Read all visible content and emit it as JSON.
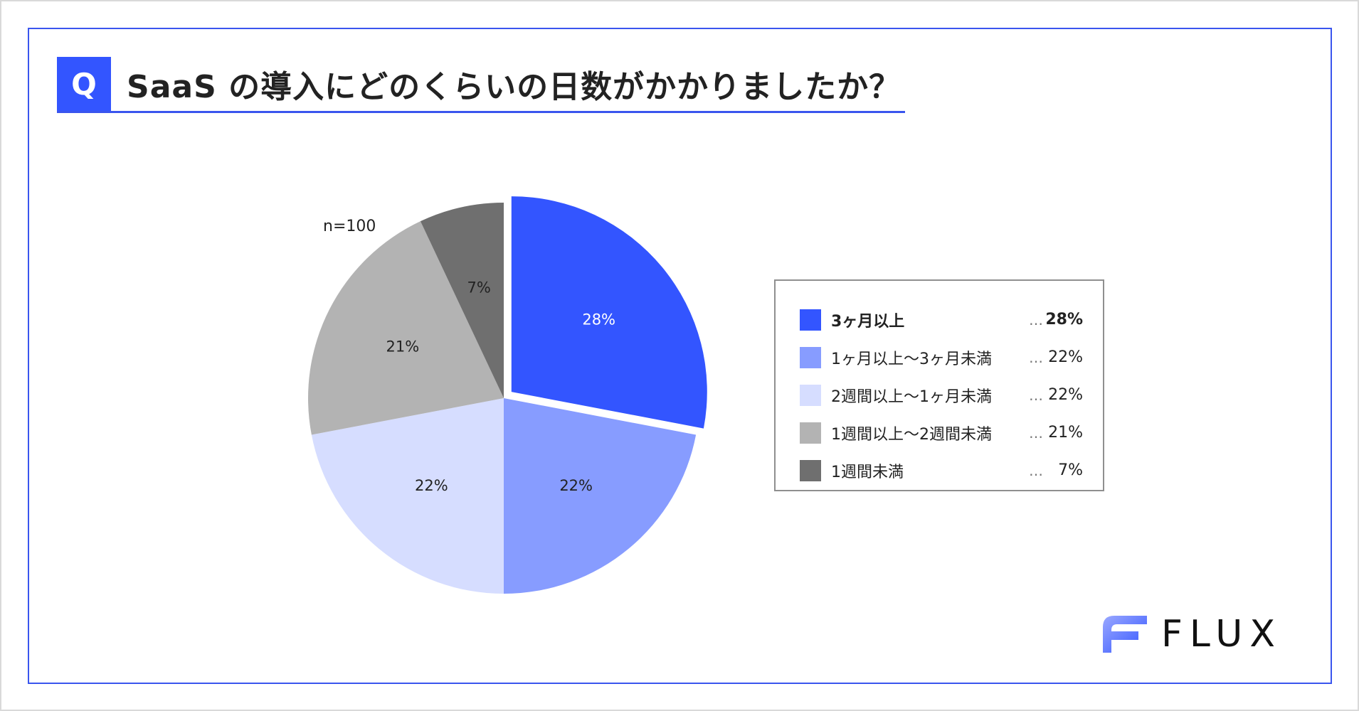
{
  "question": {
    "badge": "Q",
    "title": "SaaS の導入にどのくらいの日数がかかりましたか？"
  },
  "sample_size": "n=100",
  "brand": {
    "name": "FLUX",
    "logo_icon": "flux-logo-icon"
  },
  "colors": {
    "accent": "#3355ff",
    "frame": "#3a55ee"
  },
  "chart_data": {
    "type": "pie",
    "title": "SaaS の導入にどのくらいの日数がかかりましたか？",
    "slices": [
      {
        "label": "3ヶ月以上",
        "value": 28,
        "display": "28%",
        "color": "#3355ff",
        "label_color": "#ffffff",
        "exploded": true
      },
      {
        "label": "1ヶ月以上〜3ヶ月未満",
        "value": 22,
        "display": "22%",
        "color": "#879cff",
        "label_color": "#222222",
        "exploded": false
      },
      {
        "label": "2週間以上〜1ヶ月未満",
        "value": 22,
        "display": "22%",
        "color": "#d6ddff",
        "label_color": "#222222",
        "exploded": false
      },
      {
        "label": "1週間以上〜2週間未満",
        "value": 21,
        "display": "21%",
        "color": "#b3b3b3",
        "label_color": "#222222",
        "exploded": false
      },
      {
        "label": "1週間未満",
        "value": 7,
        "display": "7%",
        "color": "#6f6f6f",
        "label_color": "#222222",
        "exploded": false
      }
    ],
    "start": "12 o'clock",
    "direction": "clockwise",
    "legend": {
      "placement": "right",
      "separator": "…",
      "entries": [
        {
          "label": "3ヶ月以上",
          "pct": "28%"
        },
        {
          "label": "1ヶ月以上〜3ヶ月未満",
          "pct": "22%"
        },
        {
          "label": "2週間以上〜1ヶ月未満",
          "pct": "22%"
        },
        {
          "label": "1週間以上〜2週間未満",
          "pct": "21%"
        },
        {
          "label": "1週間未満",
          "pct": "7%"
        }
      ]
    }
  }
}
